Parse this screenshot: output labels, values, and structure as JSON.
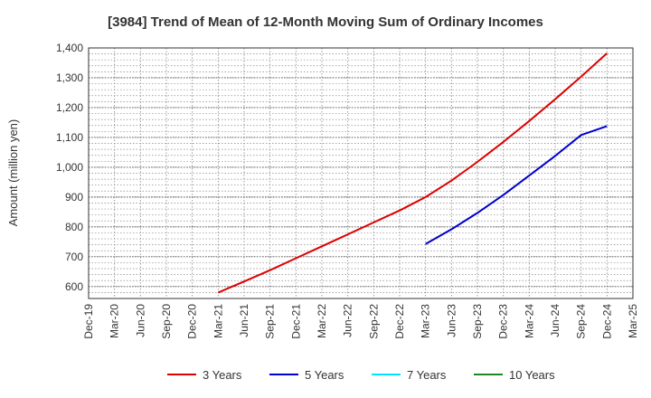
{
  "chart_data": {
    "type": "line",
    "title": "[3984]  Trend of Mean of 12-Month Moving Sum of Ordinary Incomes",
    "ylabel": "Amount (million yen)",
    "xlabel": "",
    "ylim": [
      560,
      1400
    ],
    "yticks": [
      600,
      700,
      800,
      900,
      1000,
      1100,
      1200,
      1300,
      1400
    ],
    "ytick_labels": [
      "600",
      "700",
      "800",
      "900",
      "1,000",
      "1,100",
      "1,200",
      "1,300",
      "1,400"
    ],
    "categories": [
      "Dec-19",
      "Mar-20",
      "Jun-20",
      "Sep-20",
      "Dec-20",
      "Mar-21",
      "Jun-21",
      "Sep-21",
      "Dec-21",
      "Mar-22",
      "Jun-22",
      "Sep-22",
      "Dec-22",
      "Mar-23",
      "Jun-23",
      "Sep-23",
      "Dec-23",
      "Mar-24",
      "Jun-24",
      "Sep-24",
      "Dec-24",
      "Mar-25"
    ],
    "grid": true,
    "legend_position": "bottom",
    "series": [
      {
        "name": "3 Years",
        "color": "#dd0000",
        "values": [
          null,
          null,
          null,
          null,
          null,
          580,
          617,
          655,
          695,
          735,
          775,
          815,
          855,
          900,
          955,
          1018,
          1085,
          1155,
          1228,
          1304,
          1382,
          null
        ]
      },
      {
        "name": "5 Years",
        "color": "#0000cc",
        "values": [
          null,
          null,
          null,
          null,
          null,
          null,
          null,
          null,
          null,
          null,
          null,
          null,
          null,
          743,
          792,
          847,
          907,
          972,
          1038,
          1108,
          1138,
          null
        ]
      },
      {
        "name": "7 Years",
        "color": "#00e5ff",
        "values": [
          null,
          null,
          null,
          null,
          null,
          null,
          null,
          null,
          null,
          null,
          null,
          null,
          null,
          null,
          null,
          null,
          null,
          null,
          null,
          null,
          null,
          null
        ]
      },
      {
        "name": "10 Years",
        "color": "#228822",
        "values": [
          null,
          null,
          null,
          null,
          null,
          null,
          null,
          null,
          null,
          null,
          null,
          null,
          null,
          null,
          null,
          null,
          null,
          null,
          null,
          null,
          null,
          null
        ]
      }
    ]
  }
}
